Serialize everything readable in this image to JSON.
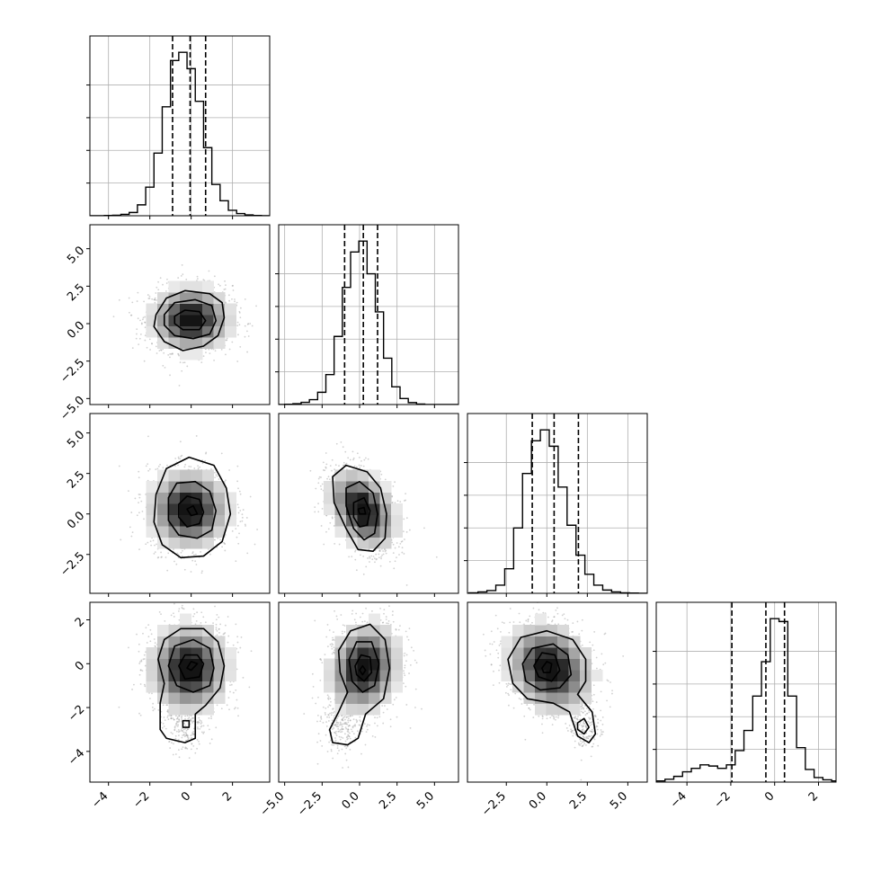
{
  "chart_data": {
    "type": "corner",
    "grid": true,
    "quantile_lines": "dashed",
    "ticks": [
      {
        "values": [
          -4,
          -2,
          0,
          2
        ],
        "labels": [
          "−4",
          "−2",
          "0",
          "2"
        ]
      },
      {
        "values": [
          -5,
          -2.5,
          0,
          2.5,
          5
        ],
        "labels": [
          "−5.0",
          "−2.5",
          "0.0",
          "2.5",
          "5.0"
        ]
      },
      {
        "values": [
          -2.5,
          0,
          2.5,
          5
        ],
        "labels": [
          "−2.5",
          "0.0",
          "2.5",
          "5.0"
        ]
      },
      {
        "values": [
          -4,
          -2,
          0,
          2
        ],
        "labels": [
          "−4",
          "−2",
          "0",
          "2"
        ]
      }
    ],
    "y_tick_labels": [
      null,
      {
        "values": [
          -5,
          -2.5,
          0,
          2.5,
          5
        ],
        "labels": [
          "−5.0",
          "−2.5",
          "0.0",
          "2.5",
          "5.0"
        ]
      },
      {
        "values": [
          -2.5,
          0,
          2.5,
          5
        ],
        "labels": [
          "−2.5",
          "0.0",
          "2.5",
          "5.0"
        ]
      },
      {
        "values": [
          -4,
          -2,
          0,
          2
        ],
        "labels": [
          "−4",
          "−2",
          "0",
          "2"
        ]
      }
    ],
    "params": [
      {
        "range": [
          -4.9,
          3.8
        ],
        "hist_edges_start": -4.2,
        "hist_bin_width": 0.4,
        "hist_counts": [
          1,
          2,
          5,
          12,
          40,
          105,
          230,
          400,
          570,
          600,
          540,
          420,
          250,
          115,
          55,
          20,
          8,
          3,
          1
        ],
        "quantiles": [
          -0.9,
          -0.05,
          0.7
        ]
      },
      {
        "range": [
          -5.4,
          6.6
        ],
        "hist_edges_start": -5.0,
        "hist_bin_width": 0.55,
        "hist_counts": [
          1,
          3,
          8,
          18,
          45,
          110,
          250,
          430,
          560,
          600,
          480,
          340,
          170,
          65,
          22,
          7,
          2
        ],
        "quantiles": [
          -1.0,
          0.25,
          1.2
        ]
      },
      {
        "range": [
          -4.9,
          6.2
        ],
        "hist_edges_start": -4.8,
        "hist_bin_width": 0.55,
        "hist_counts": [
          2,
          5,
          10,
          30,
          90,
          240,
          440,
          560,
          600,
          540,
          390,
          250,
          140,
          70,
          30,
          12,
          5,
          2,
          1
        ],
        "quantiles": [
          -0.9,
          0.45,
          1.95
        ]
      },
      {
        "range": [
          -5.4,
          2.8
        ],
        "hist_edges_start": -5.4,
        "hist_bin_width": 0.4,
        "hist_counts": [
          2,
          5,
          10,
          18,
          24,
          30,
          28,
          24,
          30,
          55,
          90,
          150,
          210,
          285,
          280,
          150,
          60,
          22,
          8,
          4,
          2
        ],
        "quantiles": [
          -1.95,
          -0.4,
          0.45
        ]
      }
    ],
    "pairs": [
      {
        "row": 1,
        "col": 0,
        "cx": 0.0,
        "cy": 0.3,
        "sx": 0.95,
        "sy": 1.05,
        "rho": 0.0,
        "contours": [
          [
            [
              -1.7,
              0.6
            ],
            [
              -1.2,
              1.7
            ],
            [
              -0.3,
              2.2
            ],
            [
              0.9,
              2.0
            ],
            [
              1.5,
              1.4
            ],
            [
              1.6,
              0.4
            ],
            [
              1.3,
              -0.8
            ],
            [
              0.6,
              -1.5
            ],
            [
              -0.4,
              -1.8
            ],
            [
              -1.3,
              -1.2
            ],
            [
              -1.8,
              -0.2
            ]
          ],
          [
            [
              -1.3,
              0.6
            ],
            [
              -0.8,
              1.4
            ],
            [
              0.2,
              1.6
            ],
            [
              1.0,
              1.2
            ],
            [
              1.2,
              0.2
            ],
            [
              0.9,
              -0.7
            ],
            [
              0.1,
              -1.0
            ],
            [
              -0.8,
              -0.8
            ],
            [
              -1.3,
              -0.1
            ]
          ],
          [
            [
              -0.8,
              0.5
            ],
            [
              -0.3,
              0.9
            ],
            [
              0.4,
              0.8
            ],
            [
              0.7,
              0.2
            ],
            [
              0.4,
              -0.4
            ],
            [
              -0.4,
              -0.4
            ],
            [
              -0.8,
              0.0
            ]
          ]
        ]
      },
      {
        "row": 2,
        "col": 0,
        "cx": -0.1,
        "cy": 0.3,
        "sx": 0.95,
        "sy": 1.2,
        "rho": 0.0,
        "contours": [
          [
            [
              -1.7,
              1.2
            ],
            [
              -1.2,
              2.8
            ],
            [
              -0.1,
              3.5
            ],
            [
              1.1,
              3.0
            ],
            [
              1.7,
              1.6
            ],
            [
              1.9,
              0.0
            ],
            [
              1.5,
              -1.7
            ],
            [
              0.6,
              -2.6
            ],
            [
              -0.5,
              -2.7
            ],
            [
              -1.4,
              -1.9
            ],
            [
              -1.8,
              -0.5
            ]
          ],
          [
            [
              -1.1,
              1.0
            ],
            [
              -0.7,
              1.9
            ],
            [
              0.2,
              2.0
            ],
            [
              0.9,
              1.4
            ],
            [
              1.2,
              0.2
            ],
            [
              1.0,
              -1.0
            ],
            [
              0.3,
              -1.5
            ],
            [
              -0.6,
              -1.3
            ],
            [
              -1.1,
              -0.4
            ]
          ],
          [
            [
              -0.6,
              0.6
            ],
            [
              -0.2,
              1.1
            ],
            [
              0.4,
              0.9
            ],
            [
              0.6,
              0.1
            ],
            [
              0.4,
              -0.6
            ],
            [
              -0.2,
              -0.8
            ],
            [
              -0.6,
              -0.2
            ]
          ],
          [
            [
              -0.2,
              0.3
            ],
            [
              0.1,
              0.5
            ],
            [
              0.3,
              0.0
            ],
            [
              0.0,
              -0.1
            ]
          ]
        ]
      },
      {
        "row": 2,
        "col": 1,
        "cx": 0.2,
        "cy": 0.3,
        "sx": 1.1,
        "sy": 1.2,
        "rho": -0.35,
        "contours": [
          [
            [
              -1.8,
              2.3
            ],
            [
              -0.9,
              3.0
            ],
            [
              0.5,
              2.6
            ],
            [
              1.4,
              1.6
            ],
            [
              1.8,
              0.0
            ],
            [
              1.7,
              -1.5
            ],
            [
              0.9,
              -2.3
            ],
            [
              -0.1,
              -2.2
            ],
            [
              -0.9,
              -0.9
            ],
            [
              -1.7,
              0.7
            ]
          ],
          [
            [
              -0.9,
              1.6
            ],
            [
              0.0,
              2.0
            ],
            [
              0.9,
              1.3
            ],
            [
              1.2,
              0.0
            ],
            [
              1.0,
              -1.2
            ],
            [
              0.3,
              -1.6
            ],
            [
              -0.4,
              -0.9
            ],
            [
              -0.9,
              0.5
            ]
          ],
          [
            [
              -0.4,
              0.7
            ],
            [
              0.3,
              1.0
            ],
            [
              0.7,
              0.2
            ],
            [
              0.5,
              -0.7
            ],
            [
              0.0,
              -0.8
            ],
            [
              -0.4,
              -0.2
            ]
          ],
          [
            [
              -0.1,
              0.3
            ],
            [
              0.3,
              0.4
            ],
            [
              0.4,
              0.0
            ],
            [
              0.0,
              0.0
            ]
          ]
        ]
      },
      {
        "row": 3,
        "col": 0,
        "cx": -0.1,
        "cy": -0.2,
        "sx": 0.95,
        "sy": 1.0,
        "rho": 0.0,
        "tail": {
          "cx": -0.3,
          "cy": -2.8,
          "sx": 0.5,
          "sy": 0.7,
          "w": 0.12
        },
        "contours": [
          [
            [
              -1.3,
              -0.9
            ],
            [
              -1.6,
              0.2
            ],
            [
              -1.3,
              1.1
            ],
            [
              -0.5,
              1.6
            ],
            [
              0.6,
              1.6
            ],
            [
              1.3,
              1.0
            ],
            [
              1.6,
              -0.1
            ],
            [
              1.4,
              -1.1
            ],
            [
              0.7,
              -1.9
            ],
            [
              0.2,
              -2.3
            ],
            [
              0.2,
              -3.4
            ],
            [
              -0.3,
              -3.6
            ],
            [
              -1.2,
              -3.4
            ],
            [
              -1.5,
              -3.0
            ],
            [
              -1.5,
              -1.8
            ]
          ],
          [
            [
              -1.1,
              -0.1
            ],
            [
              -0.8,
              0.8
            ],
            [
              0.1,
              1.1
            ],
            [
              0.9,
              0.7
            ],
            [
              1.1,
              -0.2
            ],
            [
              0.9,
              -1.0
            ],
            [
              0.1,
              -1.3
            ],
            [
              -0.7,
              -1.0
            ]
          ],
          [
            [
              -0.6,
              -0.1
            ],
            [
              -0.3,
              0.4
            ],
            [
              0.3,
              0.4
            ],
            [
              0.6,
              0.0
            ],
            [
              0.4,
              -0.6
            ],
            [
              -0.3,
              -0.7
            ]
          ],
          [
            [
              -0.2,
              -0.2
            ],
            [
              0.0,
              0.1
            ],
            [
              0.3,
              0.0
            ],
            [
              0.0,
              -0.3
            ]
          ],
          [
            [
              -0.4,
              -2.6
            ],
            [
              -0.1,
              -2.6
            ],
            [
              -0.1,
              -2.9
            ],
            [
              -0.4,
              -2.9
            ]
          ]
        ]
      },
      {
        "row": 3,
        "col": 1,
        "cx": 0.3,
        "cy": -0.2,
        "sx": 1.15,
        "sy": 1.0,
        "rho": 0.15,
        "tail": {
          "cx": -1.2,
          "cy": -2.9,
          "sx": 0.7,
          "sy": 0.6,
          "w": 0.12
        },
        "contours": [
          [
            [
              -1.4,
              0.6
            ],
            [
              -0.6,
              1.5
            ],
            [
              0.7,
              1.8
            ],
            [
              1.7,
              1.1
            ],
            [
              2.0,
              -0.2
            ],
            [
              1.6,
              -1.6
            ],
            [
              0.4,
              -2.3
            ],
            [
              -0.1,
              -3.4
            ],
            [
              -0.8,
              -3.7
            ],
            [
              -1.8,
              -3.6
            ],
            [
              -2.0,
              -3.0
            ],
            [
              -1.4,
              -2.2
            ],
            [
              -0.8,
              -1.3
            ],
            [
              -1.3,
              -0.4
            ]
          ],
          [
            [
              -0.7,
              0.2
            ],
            [
              -0.2,
              1.0
            ],
            [
              0.8,
              1.0
            ],
            [
              1.3,
              0.0
            ],
            [
              1.0,
              -1.0
            ],
            [
              0.2,
              -1.3
            ],
            [
              -0.5,
              -0.8
            ]
          ],
          [
            [
              -0.3,
              -0.1
            ],
            [
              0.1,
              0.4
            ],
            [
              0.7,
              0.3
            ],
            [
              0.8,
              -0.4
            ],
            [
              0.3,
              -0.8
            ],
            [
              -0.2,
              -0.5
            ]
          ],
          [
            [
              0.0,
              -0.3
            ],
            [
              0.2,
              -0.1
            ],
            [
              0.4,
              -0.3
            ],
            [
              0.2,
              -0.5
            ]
          ]
        ]
      },
      {
        "row": 3,
        "col": 2,
        "cx": 0.2,
        "cy": -0.2,
        "sx": 1.3,
        "sy": 1.0,
        "rho": -0.2,
        "tail": {
          "cx": 2.4,
          "cy": -2.9,
          "sx": 0.5,
          "sy": 0.5,
          "w": 0.1
        },
        "contours": [
          [
            [
              -2.4,
              0.2
            ],
            [
              -1.6,
              1.2
            ],
            [
              0.0,
              1.5
            ],
            [
              1.6,
              1.1
            ],
            [
              2.4,
              0.2
            ],
            [
              2.4,
              -0.8
            ],
            [
              1.9,
              -1.4
            ],
            [
              2.8,
              -2.2
            ],
            [
              3.0,
              -3.2
            ],
            [
              2.6,
              -3.6
            ],
            [
              1.9,
              -3.3
            ],
            [
              1.4,
              -2.2
            ],
            [
              0.4,
              -1.8
            ],
            [
              -1.2,
              -1.6
            ],
            [
              -2.1,
              -0.9
            ]
          ],
          [
            [
              -1.5,
              0.0
            ],
            [
              -0.9,
              0.7
            ],
            [
              0.4,
              0.9
            ],
            [
              1.3,
              0.4
            ],
            [
              1.5,
              -0.5
            ],
            [
              0.8,
              -1.1
            ],
            [
              -0.4,
              -1.2
            ],
            [
              -1.3,
              -0.8
            ]
          ],
          [
            [
              -0.8,
              -0.1
            ],
            [
              -0.3,
              0.5
            ],
            [
              0.5,
              0.4
            ],
            [
              0.8,
              -0.3
            ],
            [
              0.3,
              -0.8
            ],
            [
              -0.5,
              -0.6
            ]
          ],
          [
            [
              -0.3,
              -0.2
            ],
            [
              0.0,
              0.1
            ],
            [
              0.3,
              0.0
            ],
            [
              0.2,
              -0.4
            ],
            [
              -0.2,
              -0.4
            ]
          ],
          [
            [
              1.9,
              -2.7
            ],
            [
              2.3,
              -2.5
            ],
            [
              2.6,
              -2.9
            ],
            [
              2.3,
              -3.2
            ],
            [
              1.9,
              -3.0
            ]
          ]
        ]
      }
    ]
  }
}
